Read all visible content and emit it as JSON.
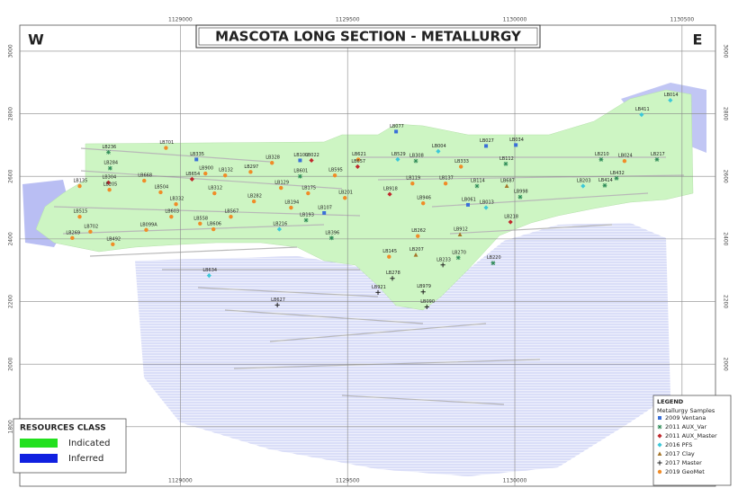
{
  "map": {
    "title": "MASCOTA LONG SECTION - METALLURGY",
    "west": "W",
    "east": "E",
    "xlim": [
      1128520,
      1130600
    ],
    "ylim": [
      1610,
      3083
    ],
    "xticks": [
      1129000,
      1129500,
      1130000,
      1130500
    ],
    "yticks": [
      1800,
      2000,
      2200,
      2400,
      2600,
      2800,
      3000
    ],
    "grid": true,
    "legend": {
      "title": "LEGEND",
      "subtitle": "Metallurgy Samples",
      "series": [
        {
          "name": "2009 Ventana",
          "color": "#3a6fd8",
          "shape": "square"
        },
        {
          "name": "2011 AUX_Var",
          "color": "#2e8b57",
          "shape": "star"
        },
        {
          "name": "2011 AUX_Master",
          "color": "#c0282d",
          "shape": "diamond"
        },
        {
          "name": "2016 PFS",
          "color": "#3cc8d8",
          "shape": "diamond"
        },
        {
          "name": "2017 Clay",
          "color": "#a5762a",
          "shape": "triangle"
        },
        {
          "name": "2017 Master",
          "color": "#222222",
          "shape": "plus"
        },
        {
          "name": "2019 GeoMet",
          "color": "#f08c28",
          "shape": "circle"
        }
      ]
    },
    "resources": {
      "title": "RESOURCES CLASS",
      "classes": [
        {
          "name": "Indicated",
          "color": "#22e01e"
        },
        {
          "name": "Inferred",
          "color": "#1020e0"
        }
      ]
    },
    "samples": [
      {
        "label": "LB014",
        "easting": 1130465,
        "elevation": 2843,
        "type": 3
      },
      {
        "label": "LB411",
        "easting": 1130379,
        "elevation": 2797,
        "type": 3
      },
      {
        "label": "LB236",
        "easting": 1128785,
        "elevation": 2677,
        "type": 1
      },
      {
        "label": "LB701",
        "easting": 1128957,
        "elevation": 2691,
        "type": 6
      },
      {
        "label": "LB335",
        "easting": 1129048,
        "elevation": 2654,
        "type": 0
      },
      {
        "label": "LB077",
        "easting": 1129645,
        "elevation": 2743,
        "type": 0
      },
      {
        "label": "LB034",
        "easting": 1130003,
        "elevation": 2700,
        "type": 0
      },
      {
        "label": "LB210",
        "easting": 1130258,
        "elevation": 2654,
        "type": 1
      },
      {
        "label": "LB217",
        "easting": 1130425,
        "elevation": 2654,
        "type": 1
      },
      {
        "label": "LB284",
        "easting": 1128790,
        "elevation": 2626,
        "type": 1
      },
      {
        "label": "LB004",
        "easting": 1129771,
        "elevation": 2680,
        "type": 3
      },
      {
        "label": "LB027",
        "easting": 1129914,
        "elevation": 2697,
        "type": 0
      },
      {
        "label": "LB328",
        "easting": 1129274,
        "elevation": 2643,
        "type": 6
      },
      {
        "label": "LB100",
        "easting": 1129358,
        "elevation": 2651,
        "type": 0
      },
      {
        "label": "LB022",
        "easting": 1129392,
        "elevation": 2651,
        "type": 2
      },
      {
        "label": "LB621",
        "easting": 1129532,
        "elevation": 2654,
        "type": 6
      },
      {
        "label": "LB529",
        "easting": 1129650,
        "elevation": 2654,
        "type": 3
      },
      {
        "label": "LB308",
        "easting": 1129704,
        "elevation": 2649,
        "type": 1
      },
      {
        "label": "LB112",
        "easting": 1129973,
        "elevation": 2640,
        "type": 1
      },
      {
        "label": "LB024",
        "easting": 1130328,
        "elevation": 2649,
        "type": 6
      },
      {
        "label": "LB900",
        "easting": 1129075,
        "elevation": 2609,
        "type": 6
      },
      {
        "label": "LB297",
        "easting": 1129210,
        "elevation": 2614,
        "type": 6
      },
      {
        "label": "LB132",
        "easting": 1129134,
        "elevation": 2603,
        "type": 6
      },
      {
        "label": "LB654",
        "easting": 1129035,
        "elevation": 2591,
        "type": 2
      },
      {
        "label": "LB601",
        "easting": 1129358,
        "elevation": 2600,
        "type": 1
      },
      {
        "label": "LB595",
        "easting": 1129462,
        "elevation": 2603,
        "type": 6
      },
      {
        "label": "LB657",
        "easting": 1129530,
        "elevation": 2631,
        "type": 2
      },
      {
        "label": "LB333",
        "easting": 1129839,
        "elevation": 2631,
        "type": 6
      },
      {
        "label": "LB432",
        "easting": 1130304,
        "elevation": 2594,
        "type": 1
      },
      {
        "label": "LB414",
        "easting": 1130269,
        "elevation": 2571,
        "type": 1
      },
      {
        "label": "LB135",
        "easting": 1128699,
        "elevation": 2569,
        "type": 6
      },
      {
        "label": "LB304",
        "easting": 1128785,
        "elevation": 2580,
        "type": 2
      },
      {
        "label": "LB205",
        "easting": 1128788,
        "elevation": 2557,
        "type": 6
      },
      {
        "label": "LB668",
        "easting": 1128892,
        "elevation": 2586,
        "type": 6
      },
      {
        "label": "LB504",
        "easting": 1128941,
        "elevation": 2549,
        "type": 6
      },
      {
        "label": "LB312",
        "easting": 1129102,
        "elevation": 2546,
        "type": 6
      },
      {
        "label": "LB129",
        "easting": 1129301,
        "elevation": 2563,
        "type": 6
      },
      {
        "label": "LB175",
        "easting": 1129382,
        "elevation": 2546,
        "type": 6
      },
      {
        "label": "LB119",
        "easting": 1129694,
        "elevation": 2577,
        "type": 6
      },
      {
        "label": "LB137",
        "easting": 1129793,
        "elevation": 2577,
        "type": 6
      },
      {
        "label": "LB114",
        "easting": 1129887,
        "elevation": 2569,
        "type": 1
      },
      {
        "label": "LB687",
        "easting": 1129976,
        "elevation": 2569,
        "type": 4
      },
      {
        "label": "LB203",
        "easting": 1130204,
        "elevation": 2569,
        "type": 3
      },
      {
        "label": "LB998",
        "easting": 1130016,
        "elevation": 2534,
        "type": 1
      },
      {
        "label": "LB515",
        "easting": 1128699,
        "elevation": 2471,
        "type": 6
      },
      {
        "label": "LB702",
        "easting": 1128731,
        "elevation": 2423,
        "type": 6
      },
      {
        "label": "LB269",
        "easting": 1128677,
        "elevation": 2403,
        "type": 6
      },
      {
        "label": "LB492",
        "easting": 1128798,
        "elevation": 2383,
        "type": 6
      },
      {
        "label": "LB332",
        "easting": 1128987,
        "elevation": 2511,
        "type": 6
      },
      {
        "label": "LB603",
        "easting": 1128973,
        "elevation": 2471,
        "type": 6
      },
      {
        "label": "LB099A",
        "easting": 1128898,
        "elevation": 2429,
        "type": 6
      },
      {
        "label": "LB567",
        "easting": 1129151,
        "elevation": 2471,
        "type": 6
      },
      {
        "label": "LB558",
        "easting": 1129059,
        "elevation": 2449,
        "type": 6
      },
      {
        "label": "LB606",
        "easting": 1129099,
        "elevation": 2431,
        "type": 6
      },
      {
        "label": "LB282",
        "easting": 1129220,
        "elevation": 2520,
        "type": 6
      },
      {
        "label": "LB194",
        "easting": 1129331,
        "elevation": 2500,
        "type": 6
      },
      {
        "label": "LB193",
        "easting": 1129376,
        "elevation": 2460,
        "type": 1
      },
      {
        "label": "LB107",
        "easting": 1129430,
        "elevation": 2483,
        "type": 0
      },
      {
        "label": "LB216",
        "easting": 1129296,
        "elevation": 2431,
        "type": 3
      },
      {
        "label": "LB396",
        "easting": 1129452,
        "elevation": 2403,
        "type": 1
      },
      {
        "label": "LB201",
        "easting": 1129492,
        "elevation": 2531,
        "type": 6
      },
      {
        "label": "LB918",
        "easting": 1129626,
        "elevation": 2543,
        "type": 2
      },
      {
        "label": "LB946",
        "easting": 1129726,
        "elevation": 2514,
        "type": 6
      },
      {
        "label": "LB061",
        "easting": 1129860,
        "elevation": 2509,
        "type": 0
      },
      {
        "label": "LB013",
        "easting": 1129914,
        "elevation": 2500,
        "type": 3
      },
      {
        "label": "LB218",
        "easting": 1129987,
        "elevation": 2454,
        "type": 2
      },
      {
        "label": "LB912",
        "easting": 1129836,
        "elevation": 2414,
        "type": 4
      },
      {
        "label": "LB262",
        "easting": 1129710,
        "elevation": 2409,
        "type": 6
      },
      {
        "label": "LB207",
        "easting": 1129704,
        "elevation": 2349,
        "type": 4
      },
      {
        "label": "LB270",
        "easting": 1129831,
        "elevation": 2340,
        "type": 1
      },
      {
        "label": "LB220",
        "easting": 1129935,
        "elevation": 2323,
        "type": 1
      },
      {
        "label": "LB233",
        "easting": 1129785,
        "elevation": 2317,
        "type": 5
      },
      {
        "label": "LB145",
        "easting": 1129624,
        "elevation": 2343,
        "type": 6
      },
      {
        "label": "LB634",
        "easting": 1129086,
        "elevation": 2283,
        "type": 3
      },
      {
        "label": "LB278",
        "easting": 1129634,
        "elevation": 2274,
        "type": 5
      },
      {
        "label": "LB979",
        "easting": 1129726,
        "elevation": 2231,
        "type": 5
      },
      {
        "label": "LB921",
        "easting": 1129591,
        "elevation": 2229,
        "type": 5
      },
      {
        "label": "LB627",
        "easting": 1129290,
        "elevation": 2189,
        "type": 5
      },
      {
        "label": "LB090",
        "easting": 1129737,
        "elevation": 2183,
        "type": 5
      }
    ]
  }
}
